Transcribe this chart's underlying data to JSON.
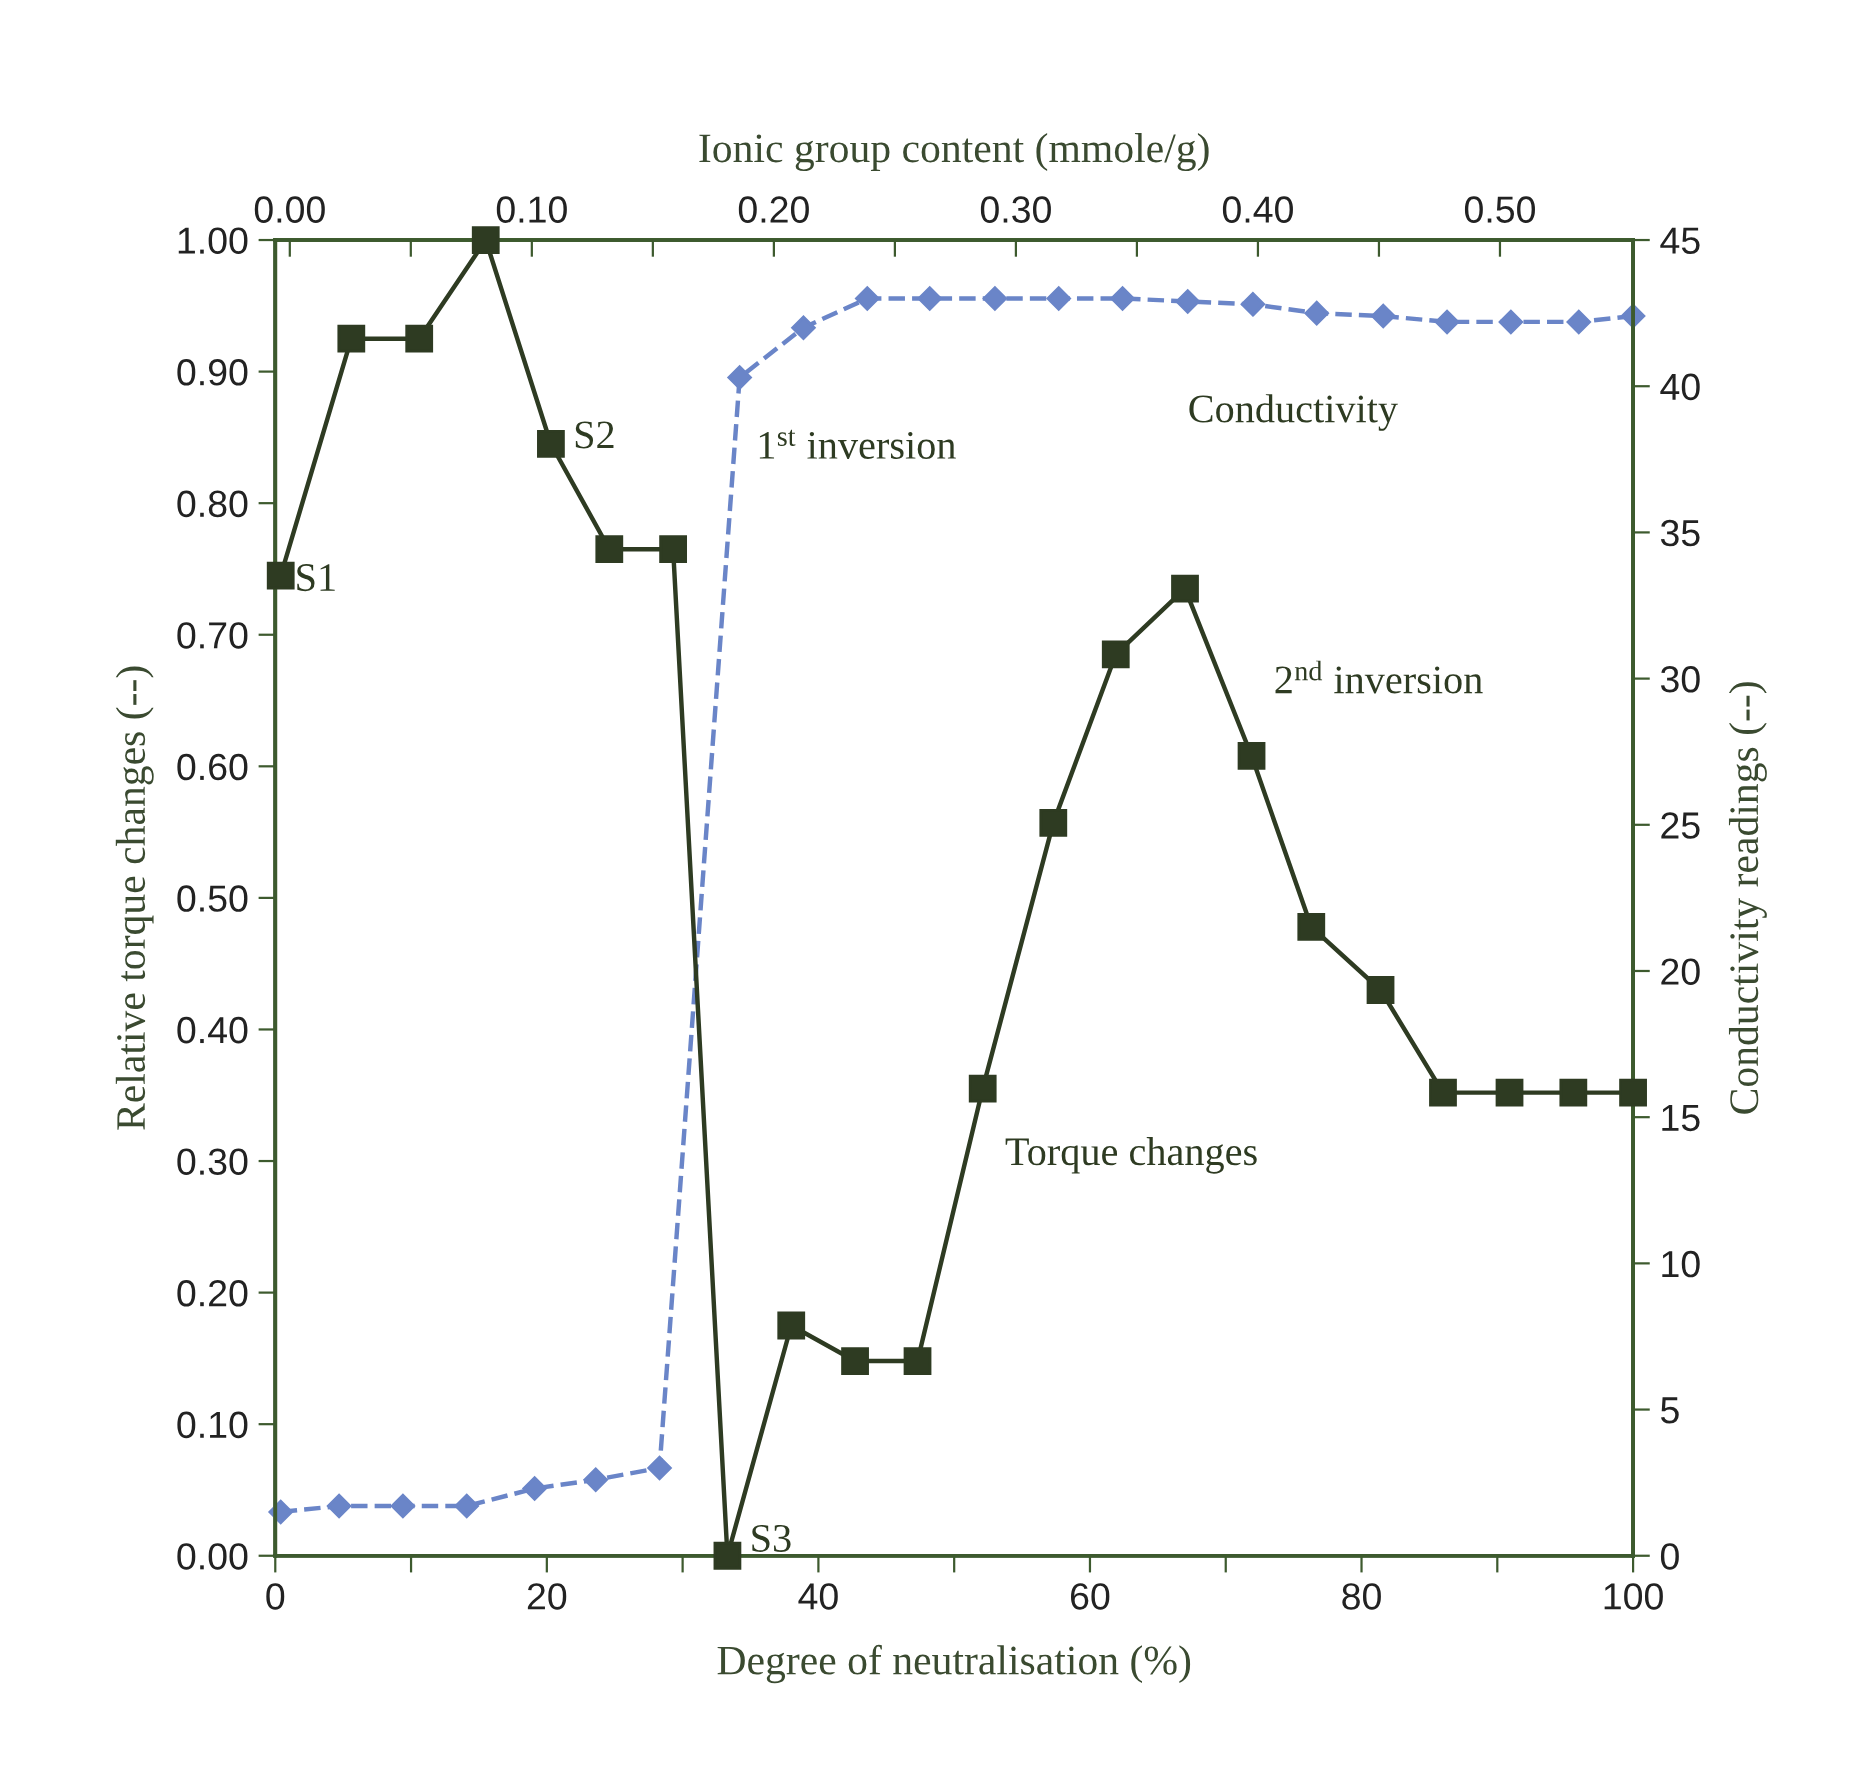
{
  "chart_data": {
    "type": "line",
    "xlabel": "Degree of neutralisation (%)",
    "ylabel": "Relative torque changes (--)",
    "y2label": "Conductivity readings (--)",
    "x2label": "Ionic group content (mmole/g)",
    "xlim": [
      0,
      100
    ],
    "xticks": [
      0,
      {
        "value": 10,
        "label": null
      },
      20,
      {
        "value": 30,
        "label": null
      },
      40,
      {
        "value": 50,
        "label": null
      },
      60,
      {
        "value": 70,
        "label": null
      },
      80,
      {
        "value": 90,
        "label": null
      },
      100
    ],
    "ylim": [
      0,
      1
    ],
    "yticks": [
      {
        "value": 0,
        "label": "0.00"
      },
      {
        "value": 0.1,
        "label": "0.10"
      },
      {
        "value": 0.2,
        "label": "0.20"
      },
      {
        "value": 0.3,
        "label": "0.30"
      },
      {
        "value": 0.4,
        "label": "0.40"
      },
      {
        "value": 0.5,
        "label": "0.50"
      },
      {
        "value": 0.6,
        "label": "0.60"
      },
      {
        "value": 0.7,
        "label": "0.70"
      },
      {
        "value": 0.8,
        "label": "0.80"
      },
      {
        "value": 0.9,
        "label": "0.90"
      },
      {
        "value": 1,
        "label": "1.00"
      }
    ],
    "y2lim": [
      0,
      45
    ],
    "y2ticks": [
      0,
      5,
      10,
      15,
      20,
      25,
      30,
      35,
      40,
      45
    ],
    "x2lim": [
      -0.006,
      0.555
    ],
    "x2ticks": [
      {
        "value": 0,
        "label": "0.00"
      },
      {
        "value": 0.05,
        "label": null
      },
      {
        "value": 0.1,
        "label": "0.10"
      },
      {
        "value": 0.15,
        "label": null
      },
      {
        "value": 0.2,
        "label": "0.20"
      },
      {
        "value": 0.25,
        "label": null
      },
      {
        "value": 0.3,
        "label": "0.30"
      },
      {
        "value": 0.35,
        "label": null
      },
      {
        "value": 0.4,
        "label": "0.40"
      },
      {
        "value": 0.45,
        "label": null
      },
      {
        "value": 0.5,
        "label": "0.50"
      }
    ],
    "grid": false,
    "legend": false,
    "series": [
      {
        "name": "Torque changes",
        "color": "#2e3b22",
        "marker": "square",
        "line_style": "solid",
        "x": [
          0.4,
          5.6,
          10.6,
          15.5,
          20.3,
          24.6,
          29.3,
          33.3,
          38.0,
          42.7,
          47.3,
          52.1,
          57.3,
          61.9,
          67.0,
          71.9,
          76.3,
          81.4,
          86.0,
          90.9,
          95.6,
          100
        ],
        "values": [
          0.745,
          0.925,
          0.925,
          1.0,
          0.845,
          0.765,
          0.765,
          0.0,
          0.175,
          0.148,
          0.148,
          0.355,
          0.557,
          0.685,
          0.735,
          0.608,
          0.478,
          0.43,
          0.352,
          0.352,
          0.352,
          0.352
        ]
      },
      {
        "name": "Conductivity",
        "color": "#6a85c8",
        "marker": "diamond",
        "line_style": "dashed",
        "axis": "y2",
        "x": [
          0.4,
          4.7,
          9.4,
          14.1,
          19.1,
          23.6,
          28.3,
          34.2,
          38.9,
          43.6,
          48.2,
          53.0,
          57.7,
          62.4,
          67.2,
          72.0,
          76.7,
          81.6,
          86.3,
          91.0,
          96.0,
          100
        ],
        "values": [
          1.5,
          1.7,
          1.7,
          1.7,
          2.3,
          2.6,
          3.0,
          40.3,
          42.0,
          43.0,
          43.0,
          43.0,
          43.0,
          43.0,
          42.9,
          42.8,
          42.5,
          42.4,
          42.2,
          42.2,
          42.2,
          42.4
        ]
      }
    ],
    "annotations": [
      {
        "text": "S1",
        "x": 0.4,
        "y": 0.745
      },
      {
        "text": "S2",
        "x": 20.3,
        "y": 0.845
      },
      {
        "text": "S3",
        "x": 33.3,
        "y": 0.0
      },
      {
        "text": "1$^{st}$ inversion",
        "x": 34.2,
        "y": 0.896
      },
      {
        "text": "2$^{nd}$ inversion",
        "x": 71.9,
        "y": 0.608
      }
    ]
  }
}
